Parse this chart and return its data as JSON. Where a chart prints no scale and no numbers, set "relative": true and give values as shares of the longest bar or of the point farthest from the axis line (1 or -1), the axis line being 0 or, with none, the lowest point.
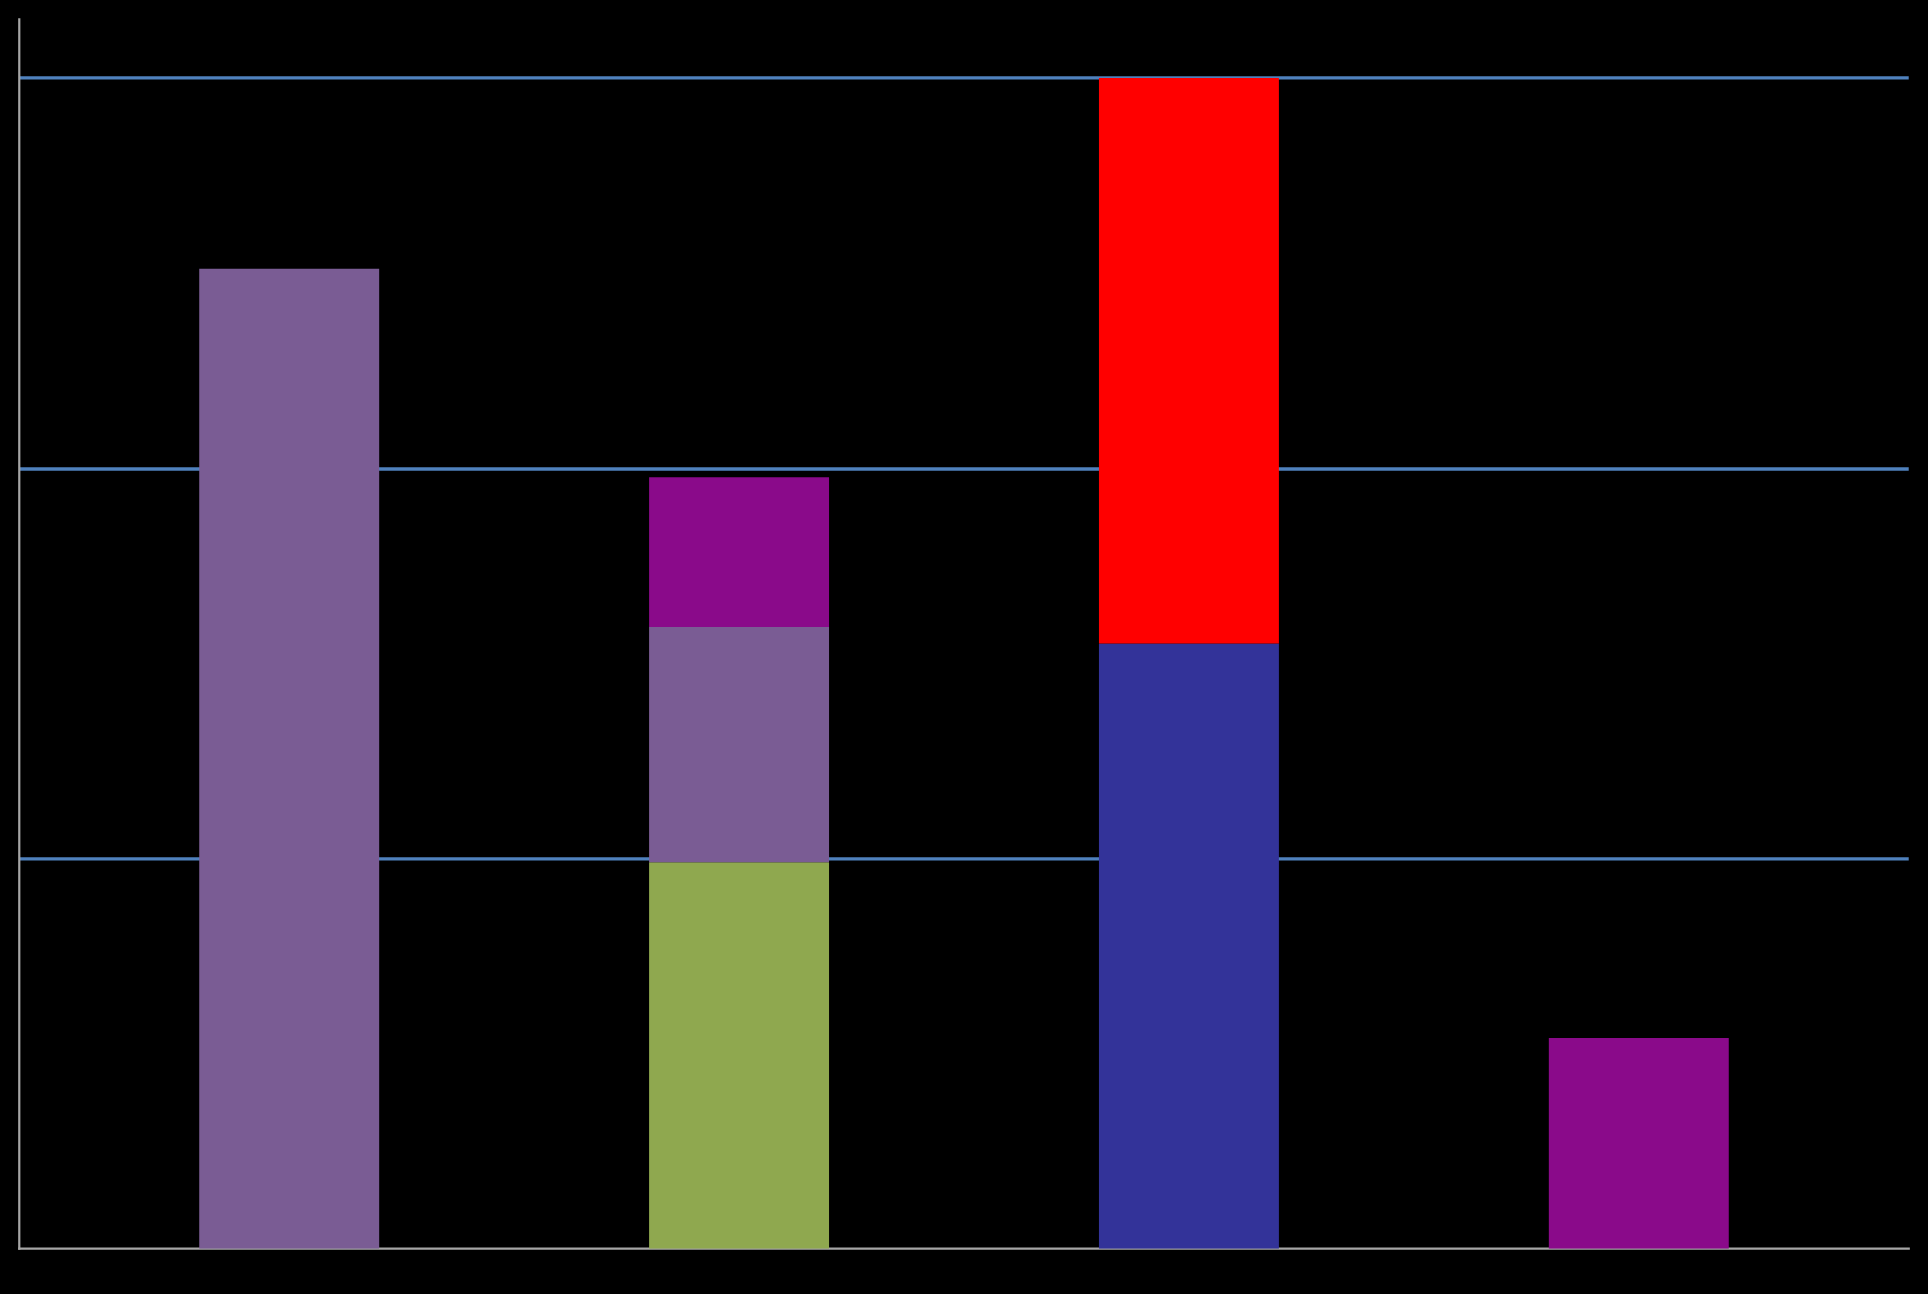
{
  "chart_data": {
    "type": "bar",
    "stacked": true,
    "relative": true,
    "ref_lines": [
      {
        "axis": "y",
        "value": 0.333,
        "color": "#4f81bd"
      },
      {
        "axis": "y",
        "value": 0.666,
        "color": "#4f81bd"
      },
      {
        "axis": "y",
        "value": 1.0,
        "color": "#4f81bd"
      }
    ],
    "categories": [
      null,
      null,
      null,
      null
    ],
    "series": [
      {
        "color": "#8fa84f",
        "values": [
          null,
          0.33,
          null,
          null
        ]
      },
      {
        "color": "#7a5c94",
        "values": [
          0.837,
          0.201,
          null,
          null
        ]
      },
      {
        "color": "#333399",
        "values": [
          null,
          null,
          0.517,
          null
        ]
      },
      {
        "color": "#ff0000",
        "values": [
          null,
          null,
          0.483,
          null
        ]
      },
      {
        "color": "#8a0a8a",
        "values": [
          null,
          0.128,
          null,
          0.18
        ]
      }
    ]
  }
}
